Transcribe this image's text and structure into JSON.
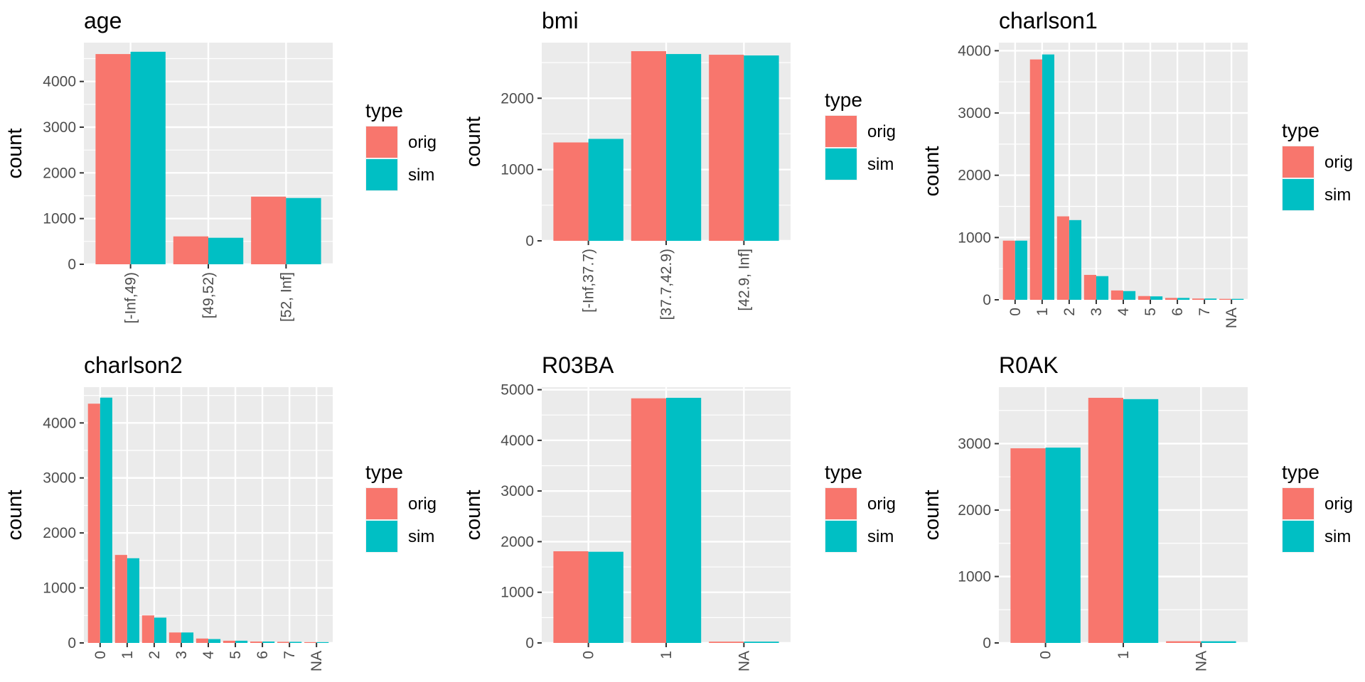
{
  "legend": {
    "title": "type",
    "items": [
      {
        "label": "orig",
        "color": "#F8766D"
      },
      {
        "label": "sim",
        "color": "#00BFC4"
      }
    ]
  },
  "y_axis_label": "count",
  "panel_background": "#EBEBEB",
  "grid_color": "#FFFFFF",
  "chart_data": [
    {
      "type": "bar",
      "title": "age",
      "ylabel": "count",
      "categories": [
        "[-Inf,49)",
        "[49,52)",
        "[52, Inf]"
      ],
      "series": [
        {
          "name": "orig",
          "values": [
            4600,
            610,
            1480
          ]
        },
        {
          "name": "sim",
          "values": [
            4650,
            580,
            1450
          ]
        }
      ],
      "ylim": [
        0,
        4850
      ],
      "yticks": [
        0,
        1000,
        2000,
        3000,
        4000
      ],
      "legend_position": "right"
    },
    {
      "type": "bar",
      "title": "bmi",
      "ylabel": "count",
      "categories": [
        "[-Inf,37.7)",
        "[37.7,42.9)",
        "[42.9, Inf]"
      ],
      "series": [
        {
          "name": "orig",
          "values": [
            1380,
            2660,
            2610
          ]
        },
        {
          "name": "sim",
          "values": [
            1430,
            2620,
            2600
          ]
        }
      ],
      "ylim": [
        0,
        2780
      ],
      "yticks": [
        0,
        1000,
        2000
      ],
      "legend_position": "right"
    },
    {
      "type": "bar",
      "title": "charlson1",
      "ylabel": "count",
      "categories": [
        "0",
        "1",
        "2",
        "3",
        "4",
        "5",
        "6",
        "7",
        "NA"
      ],
      "series": [
        {
          "name": "orig",
          "values": [
            950,
            3860,
            1340,
            400,
            150,
            60,
            30,
            20,
            15
          ]
        },
        {
          "name": "sim",
          "values": [
            950,
            3940,
            1280,
            380,
            140,
            55,
            30,
            20,
            15
          ]
        }
      ],
      "ylim": [
        0,
        4130
      ],
      "yticks": [
        0,
        1000,
        2000,
        3000,
        4000
      ],
      "legend_position": "right"
    },
    {
      "type": "bar",
      "title": "charlson2",
      "ylabel": "count",
      "categories": [
        "0",
        "1",
        "2",
        "3",
        "4",
        "5",
        "6",
        "7",
        "NA"
      ],
      "series": [
        {
          "name": "orig",
          "values": [
            4350,
            1600,
            500,
            190,
            80,
            40,
            25,
            20,
            15
          ]
        },
        {
          "name": "sim",
          "values": [
            4460,
            1540,
            460,
            190,
            70,
            40,
            25,
            20,
            15
          ]
        }
      ],
      "ylim": [
        0,
        4650
      ],
      "yticks": [
        0,
        1000,
        2000,
        3000,
        4000
      ],
      "legend_position": "right"
    },
    {
      "type": "bar",
      "title": "R03BA",
      "ylabel": "count",
      "categories": [
        "0",
        "1",
        "NA"
      ],
      "series": [
        {
          "name": "orig",
          "values": [
            1810,
            4830,
            25
          ]
        },
        {
          "name": "sim",
          "values": [
            1800,
            4840,
            25
          ]
        }
      ],
      "ylim": [
        0,
        5050
      ],
      "yticks": [
        0,
        1000,
        2000,
        3000,
        4000,
        5000
      ],
      "legend_position": "right"
    },
    {
      "type": "bar",
      "title": "R0AK",
      "ylabel": "count",
      "categories": [
        "0",
        "1",
        "NA"
      ],
      "series": [
        {
          "name": "orig",
          "values": [
            2930,
            3690,
            25
          ]
        },
        {
          "name": "sim",
          "values": [
            2940,
            3670,
            25
          ]
        }
      ],
      "ylim": [
        0,
        3850
      ],
      "yticks": [
        0,
        1000,
        2000,
        3000
      ],
      "legend_position": "right"
    }
  ]
}
